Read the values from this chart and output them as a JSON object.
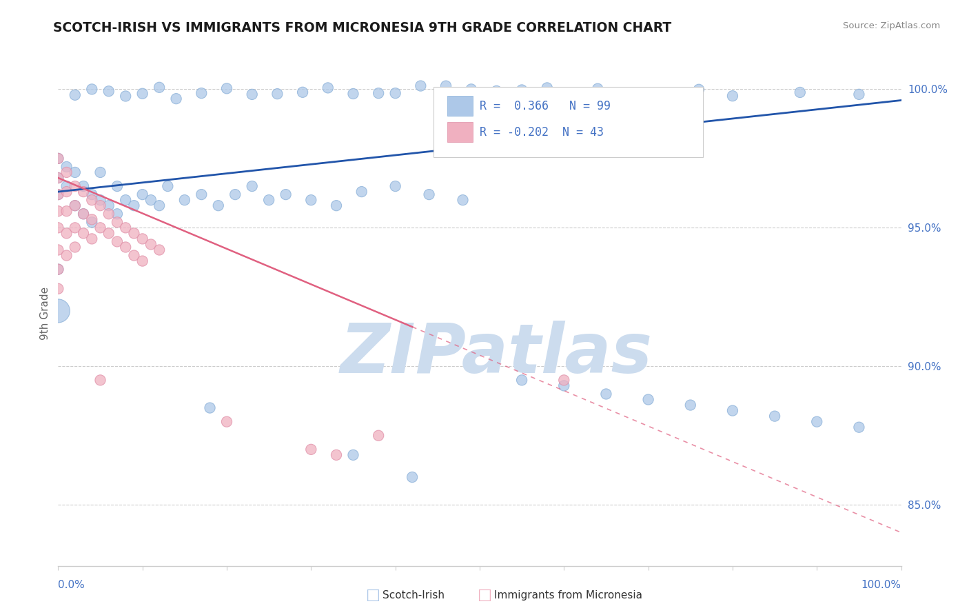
{
  "title": "SCOTCH-IRISH VS IMMIGRANTS FROM MICRONESIA 9TH GRADE CORRELATION CHART",
  "source": "Source: ZipAtlas.com",
  "ylabel": "9th Grade",
  "ytick_labels": [
    "85.0%",
    "90.0%",
    "95.0%",
    "100.0%"
  ],
  "ytick_values": [
    0.85,
    0.9,
    0.95,
    1.0
  ],
  "xmin": 0.0,
  "xmax": 1.0,
  "ymin": 0.828,
  "ymax": 1.01,
  "blue_R": 0.366,
  "blue_N": 99,
  "pink_R": -0.202,
  "pink_N": 43,
  "blue_color": "#adc8e8",
  "blue_edge_color": "#8ab0d8",
  "blue_line_color": "#2255aa",
  "pink_color": "#f0b0c0",
  "pink_edge_color": "#e090a8",
  "pink_line_color": "#e06080",
  "watermark": "ZIPatlas",
  "watermark_color": "#ccdcee",
  "legend_label_blue": "Scotch-Irish",
  "legend_label_pink": "Immigrants from Micronesia"
}
